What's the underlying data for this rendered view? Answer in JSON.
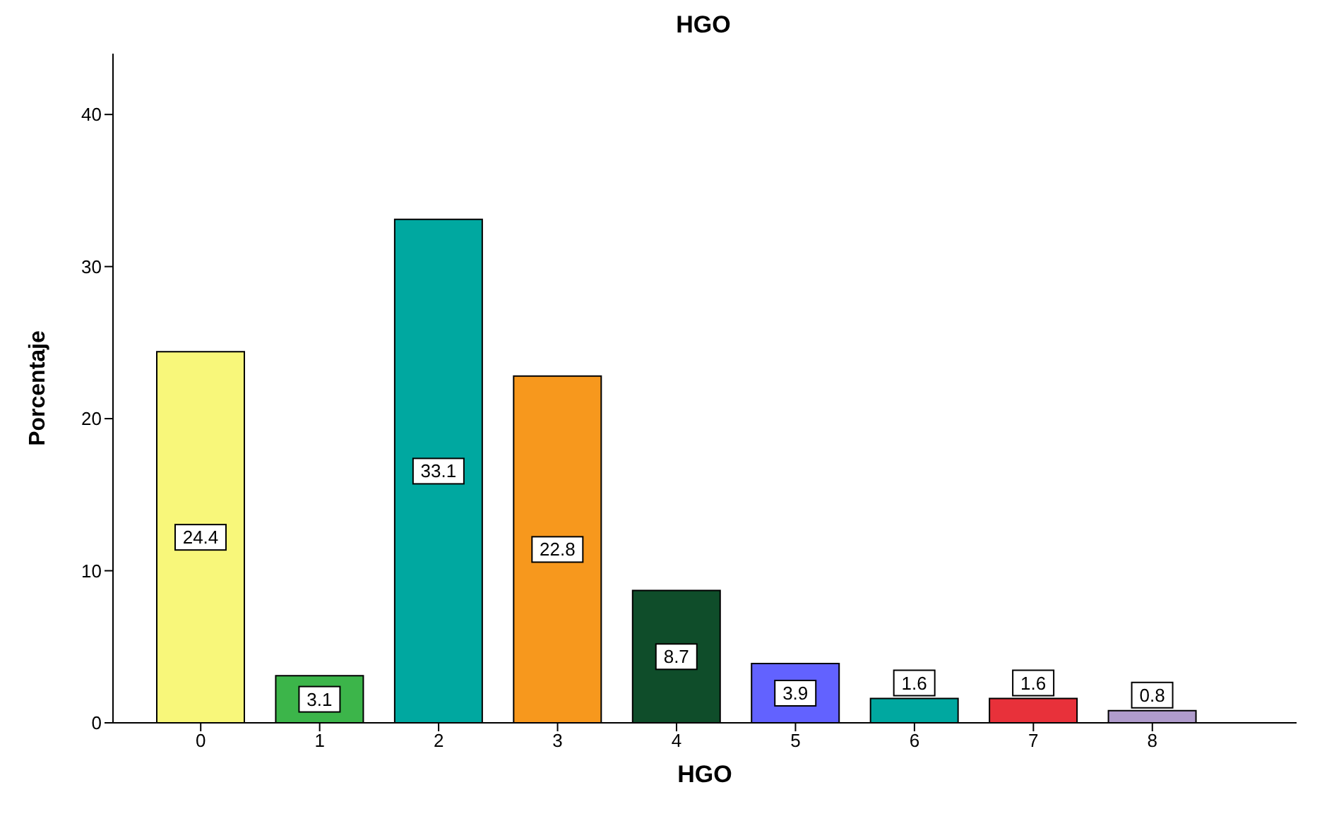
{
  "chart_data": {
    "type": "bar",
    "title": "HGO",
    "xlabel": "HGO",
    "ylabel": "Porcentaje",
    "categories": [
      "0",
      "1",
      "2",
      "3",
      "4",
      "5",
      "6",
      "7",
      "8"
    ],
    "values": [
      24.4,
      3.1,
      33.1,
      22.8,
      8.7,
      3.9,
      1.6,
      1.6,
      0.8
    ],
    "colors": [
      "#f8f77a",
      "#3cb54a",
      "#00a8a0",
      "#f7981d",
      "#0f4d2a",
      "#6262ff",
      "#00a8a0",
      "#e8313a",
      "#b09ccc"
    ],
    "ylim": [
      0,
      44
    ],
    "yticks": [
      0,
      10,
      20,
      30,
      40
    ],
    "grid": false,
    "data_labels": true
  }
}
